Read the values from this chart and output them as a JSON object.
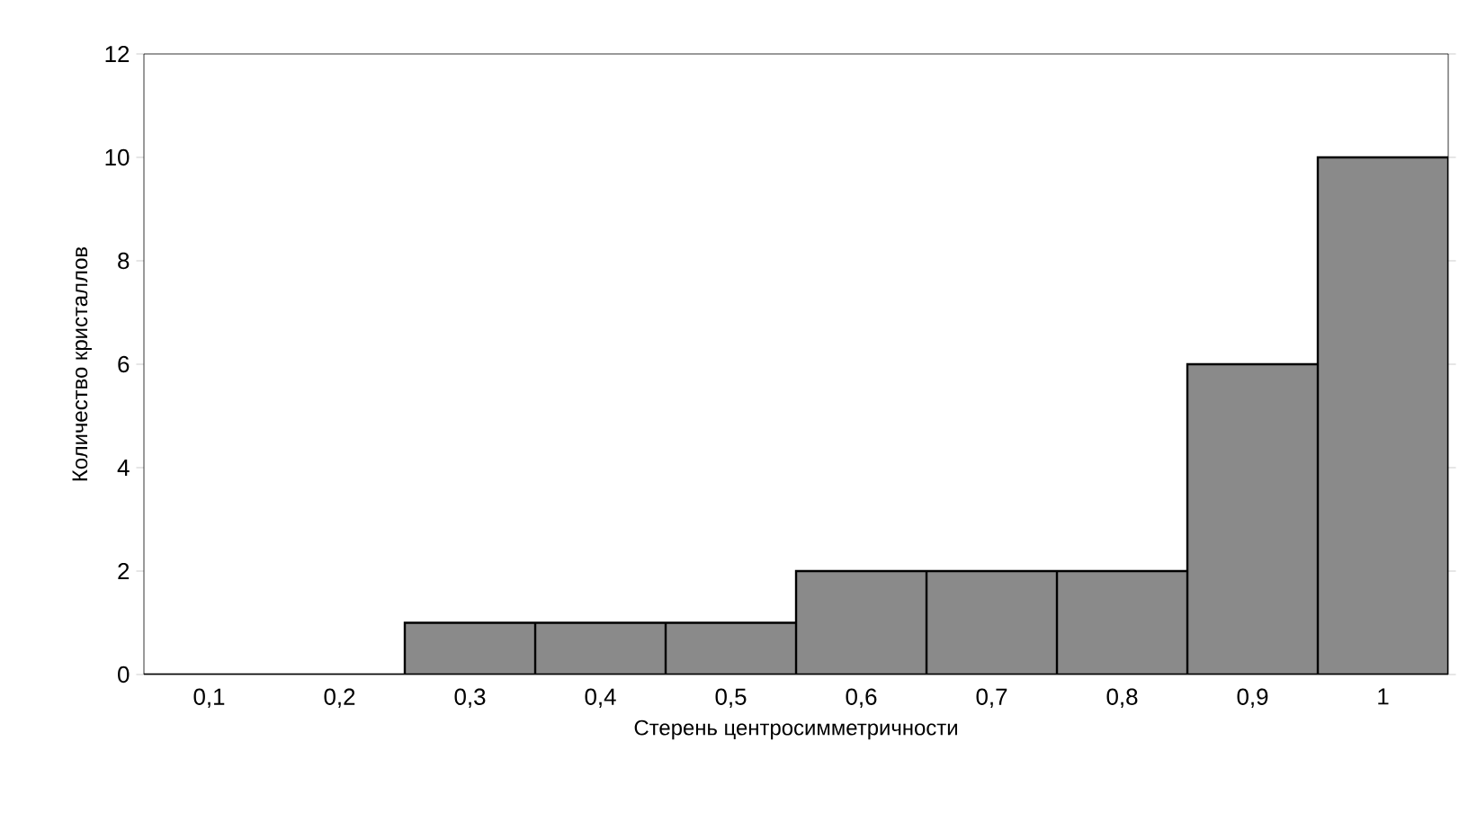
{
  "chart_data": {
    "type": "bar",
    "xlabel": "Стерень центросимметричности",
    "ylabel": "Количество кристаллов",
    "categories": [
      "0,1",
      "0,2",
      "0,3",
      "0,4",
      "0,5",
      "0,6",
      "0,7",
      "0,8",
      "0,9",
      "1"
    ],
    "values": [
      0,
      0,
      1,
      1,
      1,
      2,
      2,
      2,
      6,
      10
    ],
    "color": "#8a8a8a",
    "ylim": [
      0,
      12
    ],
    "yticks": [
      0,
      2,
      4,
      6,
      8,
      10,
      12
    ]
  }
}
